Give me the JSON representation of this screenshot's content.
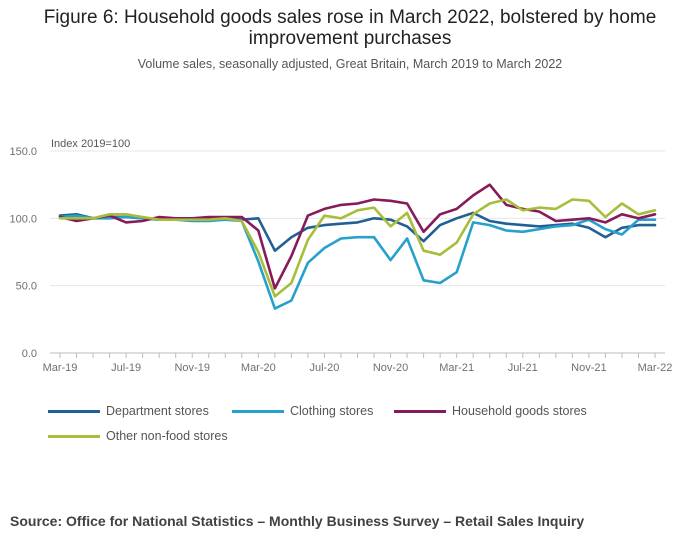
{
  "title": "Figure 6: Household goods sales rose in March 2022, bolstered by home improvement purchases",
  "subtitle": "Volume sales, seasonally adjusted, Great Britain, March 2019 to March 2022",
  "source": "Source: Office for National Statistics – Monthly Business Survey – Retail Sales Inquiry",
  "chart_data": {
    "type": "line",
    "title": "Figure 6: Household goods sales rose in March 2022, bolstered by home improvement purchases",
    "ylabel": "Index 2019=100",
    "ylim": [
      0,
      150
    ],
    "yticks": [
      "0.0",
      "50.0",
      "100.0",
      "150.0"
    ],
    "grid": true,
    "legend_position": "bottom",
    "x": [
      "Mar-19",
      "Apr-19",
      "May-19",
      "Jun-19",
      "Jul-19",
      "Aug-19",
      "Sep-19",
      "Oct-19",
      "Nov-19",
      "Dec-19",
      "Jan-20",
      "Feb-20",
      "Mar-20",
      "Apr-20",
      "May-20",
      "Jun-20",
      "Jul-20",
      "Aug-20",
      "Sep-20",
      "Oct-20",
      "Nov-20",
      "Dec-20",
      "Jan-21",
      "Feb-21",
      "Mar-21",
      "Apr-21",
      "May-21",
      "Jun-21",
      "Jul-21",
      "Aug-21",
      "Sep-21",
      "Oct-21",
      "Nov-21",
      "Dec-21",
      "Jan-22",
      "Feb-22",
      "Mar-22"
    ],
    "xtick_labels": [
      "Mar-19",
      "Jul-19",
      "Nov-19",
      "Mar-20",
      "Jul-20",
      "Nov-20",
      "Mar-21",
      "Jul-21",
      "Nov-21",
      "Mar-22"
    ],
    "series": [
      {
        "name": "Department stores",
        "color": "#206095",
        "values": [
          102,
          103,
          100,
          101,
          101,
          100,
          99,
          100,
          100,
          100,
          100,
          99,
          100,
          76,
          86,
          93,
          95,
          96,
          97,
          100,
          99,
          94,
          83,
          95,
          100,
          104,
          98,
          96,
          95,
          94,
          95,
          96,
          93,
          86,
          93,
          95,
          95
        ]
      },
      {
        "name": "Clothing stores",
        "color": "#27A0CC",
        "values": [
          101,
          102,
          100,
          100,
          101,
          100,
          99,
          99,
          98,
          98,
          99,
          98,
          68,
          33,
          39,
          67,
          78,
          85,
          86,
          86,
          69,
          85,
          54,
          52,
          60,
          97,
          95,
          91,
          90,
          92,
          94,
          95,
          99,
          92,
          88,
          99,
          99
        ]
      },
      {
        "name": "Household goods stores",
        "color": "#871A5B",
        "values": [
          101,
          98,
          100,
          102,
          97,
          98,
          101,
          100,
          100,
          101,
          101,
          101,
          91,
          48,
          72,
          102,
          107,
          110,
          111,
          114,
          113,
          111,
          90,
          103,
          107,
          117,
          125,
          110,
          107,
          105,
          98,
          99,
          100,
          97,
          103,
          100,
          103
        ]
      },
      {
        "name": "Other non-food stores",
        "color": "#A8BD3A",
        "values": [
          100,
          100,
          100,
          103,
          103,
          101,
          99,
          99,
          99,
          99,
          100,
          98,
          75,
          42,
          52,
          84,
          102,
          100,
          106,
          108,
          94,
          104,
          76,
          73,
          82,
          103,
          111,
          114,
          106,
          108,
          107,
          114,
          113,
          101,
          111,
          103,
          106
        ]
      }
    ]
  }
}
